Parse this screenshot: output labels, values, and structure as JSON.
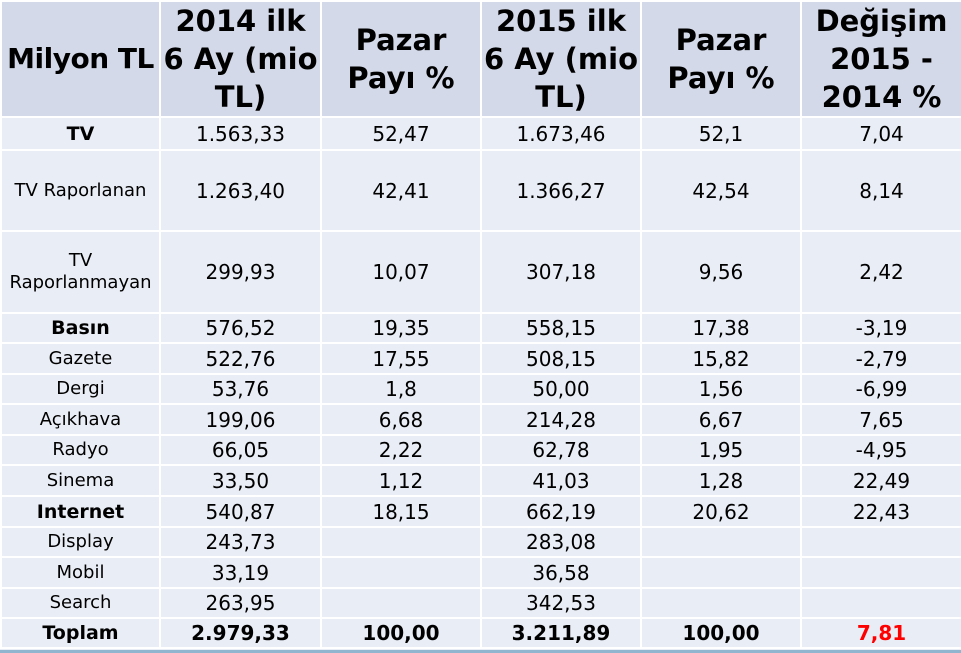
{
  "headers": [
    "Milyon TL",
    "2014 ilk 6 Ay (mio TL)",
    "Pazar Payı %",
    "2015 ilk 6 Ay (mio TL)",
    "Pazar Payı %",
    "Değişim 2015 - 2014 %"
  ],
  "rows": [
    {
      "label": "TV",
      "c2014": "1.563,33",
      "p2014": "52,47",
      "c2015": "1.673,46",
      "p2015": "52,1",
      "change": "7,04"
    },
    {
      "label": "TV Raporlanan",
      "c2014": "1.263,40",
      "p2014": "42,41",
      "c2015": "1.366,27",
      "p2015": "42,54",
      "change": "8,14"
    },
    {
      "label": "TV Raporlanmayan",
      "c2014": "299,93",
      "p2014": "10,07",
      "c2015": "307,18",
      "p2015": "9,56",
      "change": "2,42"
    },
    {
      "label": "Basın",
      "c2014": "576,52",
      "p2014": "19,35",
      "c2015": "558,15",
      "p2015": "17,38",
      "change": "-3,19"
    },
    {
      "label": "Gazete",
      "c2014": "522,76",
      "p2014": "17,55",
      "c2015": "508,15",
      "p2015": "15,82",
      "change": "-2,79"
    },
    {
      "label": "Dergi",
      "c2014": "53,76",
      "p2014": "1,8",
      "c2015": "50,00",
      "p2015": "1,56",
      "change": "-6,99"
    },
    {
      "label": "Açıkhava",
      "c2014": "199,06",
      "p2014": "6,68",
      "c2015": "214,28",
      "p2015": "6,67",
      "change": "7,65"
    },
    {
      "label": "Radyo",
      "c2014": "66,05",
      "p2014": "2,22",
      "c2015": "62,78",
      "p2015": "1,95",
      "change": "-4,95"
    },
    {
      "label": "Sinema",
      "c2014": "33,50",
      "p2014": "1,12",
      "c2015": "41,03",
      "p2015": "1,28",
      "change": "22,49"
    },
    {
      "label": "Internet",
      "c2014": "540,87",
      "p2014": "18,15",
      "c2015": "662,19",
      "p2015": "20,62",
      "change": "22,43"
    },
    {
      "label": "Display",
      "c2014": "243,73",
      "p2014": "",
      "c2015": "283,08",
      "p2015": "",
      "change": ""
    },
    {
      "label": "Mobil",
      "c2014": "33,19",
      "p2014": "",
      "c2015": "36,58",
      "p2015": "",
      "change": ""
    },
    {
      "label": "Search",
      "c2014": "263,95",
      "p2014": "",
      "c2015": "342,53",
      "p2015": "",
      "change": ""
    },
    {
      "label": "Toplam",
      "c2014": "2.979,33",
      "p2014": "100,00",
      "c2015": "3.211,89",
      "p2015": "100,00",
      "change": "7,81"
    }
  ],
  "colors": {
    "header_bg": "#d3d9e8",
    "row_bg": "#e9edf5",
    "highlight_red": "#ff0000"
  }
}
